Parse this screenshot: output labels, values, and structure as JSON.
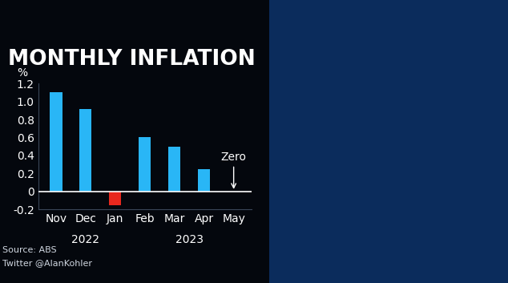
{
  "chart_data": {
    "type": "bar",
    "title": "MONTHLY INFLATION",
    "y_label": "%",
    "categories": [
      "Nov",
      "Dec",
      "Jan",
      "Feb",
      "Mar",
      "Apr",
      "May"
    ],
    "values": [
      1.1,
      0.92,
      -0.15,
      0.6,
      0.5,
      0.25,
      0
    ],
    "colors": [
      "#29b6f6",
      "#29b6f6",
      "#e8281e",
      "#29b6f6",
      "#29b6f6",
      "#29b6f6",
      "#29b6f6"
    ],
    "ylim": [
      -0.2,
      1.2
    ],
    "yticks": [
      -0.2,
      0,
      0.2,
      0.4,
      0.6,
      0.8,
      1.0,
      1.2
    ],
    "grid": false,
    "x_groups": [
      {
        "label": "2022",
        "categories": [
          "Nov",
          "Dec",
          "Jan"
        ]
      },
      {
        "label": "2023",
        "categories": [
          "Feb",
          "Mar",
          "Apr",
          "May"
        ]
      }
    ],
    "annotations": [
      {
        "text": "Zero",
        "category": "May",
        "value": 0
      }
    ],
    "source": "Source: ABS",
    "credit": "Twitter @AlanKohler"
  }
}
